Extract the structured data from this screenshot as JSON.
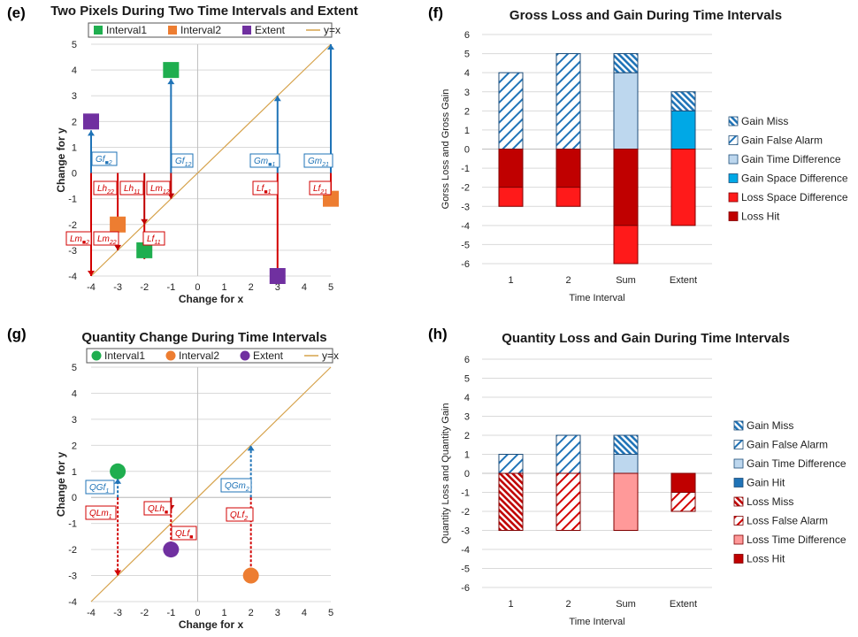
{
  "colors": {
    "interval1": "#1fae4f",
    "interval2": "#ed7d31",
    "extent": "#7030a0",
    "yx_line": "#d6a24b",
    "gain_blue": "#1f73b7",
    "loss_red": "#d20000",
    "loss_hit": "#c00000",
    "loss_space": "#ff1a1a",
    "gain_space": "#00a8e6",
    "gain_time": "#bdd7ee",
    "loss_time": "#ff9999",
    "grid": "#d9d9d9"
  },
  "chart_data": [
    {
      "id": "e",
      "panel_label": "(e)",
      "type": "scatter",
      "title": "Two Pixels During Two Time Intervals and Extent",
      "xlabel": "Change for x",
      "ylabel": "Change for y",
      "xlim": [
        -4,
        5
      ],
      "ylim": [
        -4,
        5
      ],
      "xticks": [
        "-4",
        "-3",
        "-2",
        "-1",
        "0",
        "1",
        "2",
        "3",
        "4",
        "5"
      ],
      "yticks": [
        "5",
        "4",
        "3",
        "2",
        "1",
        "0",
        "-1",
        "-2",
        "-3",
        "-4"
      ],
      "marker": "square",
      "legend": [
        "Interval1",
        "Interval2",
        "Extent",
        "y=x"
      ],
      "legend_position": "top",
      "series": [
        {
          "name": "Interval1",
          "points": [
            [
              -1,
              4
            ],
            [
              -2,
              -3
            ]
          ]
        },
        {
          "name": "Interval2",
          "points": [
            [
              -3,
              -2
            ],
            [
              5,
              -1
            ]
          ]
        },
        {
          "name": "Extent",
          "points": [
            [
              -4,
              2
            ],
            [
              3,
              -4
            ]
          ]
        }
      ],
      "annotations": {
        "gain": [
          {
            "label": "Gf",
            "sub": "■2"
          },
          {
            "label": "Gf",
            "sub": "12"
          },
          {
            "label": "Gm",
            "sub": "■1"
          },
          {
            "label": "Gm",
            "sub": "21"
          }
        ],
        "loss": [
          {
            "label": "Lh",
            "sub": "22"
          },
          {
            "label": "Lh",
            "sub": "11"
          },
          {
            "label": "Lm",
            "sub": "12"
          },
          {
            "label": "Lf",
            "sub": "■1"
          },
          {
            "label": "Lf",
            "sub": "21"
          },
          {
            "label": "Lm",
            "sub": "■2"
          },
          {
            "label": "Lm",
            "sub": "22"
          },
          {
            "label": "Lf",
            "sub": "11"
          }
        ]
      }
    },
    {
      "id": "f",
      "panel_label": "(f)",
      "type": "bar",
      "stacked": true,
      "title": "Gross Loss and Gain During Time Intervals",
      "xlabel": "Time Interval",
      "ylabel": "Gorss Loss and Gross Gain",
      "ylim": [
        -6,
        6
      ],
      "yticks": [
        "6",
        "5",
        "4",
        "3",
        "2",
        "1",
        "0",
        "-1",
        "-2",
        "-3",
        "-4",
        "-5",
        "-6"
      ],
      "categories": [
        "1",
        "2",
        "Sum",
        "Extent"
      ],
      "legend": [
        "Gain Miss",
        "Gain False Alarm",
        "Gain Time Difference",
        "Gain Space Difference",
        "Loss Space Difference",
        "Loss Hit"
      ],
      "legend_position": "right",
      "series": [
        {
          "name": "Gain Miss",
          "values": [
            0,
            0,
            1,
            1
          ]
        },
        {
          "name": "Gain False Alarm",
          "values": [
            4,
            5,
            0,
            0
          ]
        },
        {
          "name": "Gain Time Difference",
          "values": [
            0,
            0,
            4,
            0
          ]
        },
        {
          "name": "Gain Space Difference",
          "values": [
            0,
            0,
            0,
            2
          ]
        },
        {
          "name": "Loss Space Difference",
          "values": [
            -1,
            -1,
            -2,
            -4
          ]
        },
        {
          "name": "Loss Hit",
          "values": [
            -2,
            -2,
            -4,
            0
          ]
        }
      ]
    },
    {
      "id": "g",
      "panel_label": "(g)",
      "type": "scatter",
      "title": "Quantity Change During Time Intervals",
      "xlabel": "Change for x",
      "ylabel": "Change for y",
      "xlim": [
        -4,
        5
      ],
      "ylim": [
        -4,
        5
      ],
      "xticks": [
        "-4",
        "-3",
        "-2",
        "-1",
        "0",
        "1",
        "2",
        "3",
        "4",
        "5"
      ],
      "yticks": [
        "5",
        "4",
        "3",
        "2",
        "1",
        "0",
        "-1",
        "-2",
        "-3",
        "-4"
      ],
      "marker": "circle",
      "legend": [
        "Interval1",
        "Interval2",
        "Extent",
        "y=x"
      ],
      "legend_position": "top",
      "series": [
        {
          "name": "Interval1",
          "points": [
            [
              -3,
              1
            ]
          ]
        },
        {
          "name": "Interval2",
          "points": [
            [
              2,
              -3
            ]
          ]
        },
        {
          "name": "Extent",
          "points": [
            [
              -1,
              -2
            ]
          ]
        }
      ],
      "annotations": {
        "gain": [
          {
            "label": "QGf",
            "sub": "1"
          },
          {
            "label": "QGm",
            "sub": "2"
          }
        ],
        "loss": [
          {
            "label": "QLm",
            "sub": "1"
          },
          {
            "label": "QLh",
            "sub": "■"
          },
          {
            "label": "QLf",
            "sub": "■"
          },
          {
            "label": "QLf",
            "sub": "2"
          }
        ]
      }
    },
    {
      "id": "h",
      "panel_label": "(h)",
      "type": "bar",
      "stacked": true,
      "title": "Quantity Loss and Gain During Time Intervals",
      "xlabel": "Time Interval",
      "ylabel": "Quantity Loss and Quantity Gain",
      "ylim": [
        -6,
        6
      ],
      "yticks": [
        "6",
        "5",
        "4",
        "3",
        "2",
        "1",
        "0",
        "-1",
        "-2",
        "-3",
        "-4",
        "-5",
        "-6"
      ],
      "categories": [
        "1",
        "2",
        "Sum",
        "Extent"
      ],
      "legend": [
        "Gain Miss",
        "Gain False Alarm",
        "Gain Time Difference",
        "Gain Hit",
        "Loss Miss",
        "Loss False Alarm",
        "Loss Time Difference",
        "Loss Hit"
      ],
      "legend_position": "right",
      "series": [
        {
          "name": "Gain Miss",
          "values": [
            0,
            0,
            1,
            0
          ]
        },
        {
          "name": "Gain False Alarm",
          "values": [
            1,
            2,
            0,
            0
          ]
        },
        {
          "name": "Gain Time Difference",
          "values": [
            0,
            0,
            1,
            0
          ]
        },
        {
          "name": "Gain Hit",
          "values": [
            0,
            0,
            0,
            0
          ]
        },
        {
          "name": "Loss Miss",
          "values": [
            -3,
            0,
            0,
            0
          ]
        },
        {
          "name": "Loss False Alarm",
          "values": [
            0,
            -3,
            0,
            -1
          ]
        },
        {
          "name": "Loss Time Difference",
          "values": [
            0,
            0,
            -3,
            0
          ]
        },
        {
          "name": "Loss Hit",
          "values": [
            0,
            0,
            0,
            -1
          ]
        }
      ]
    }
  ]
}
